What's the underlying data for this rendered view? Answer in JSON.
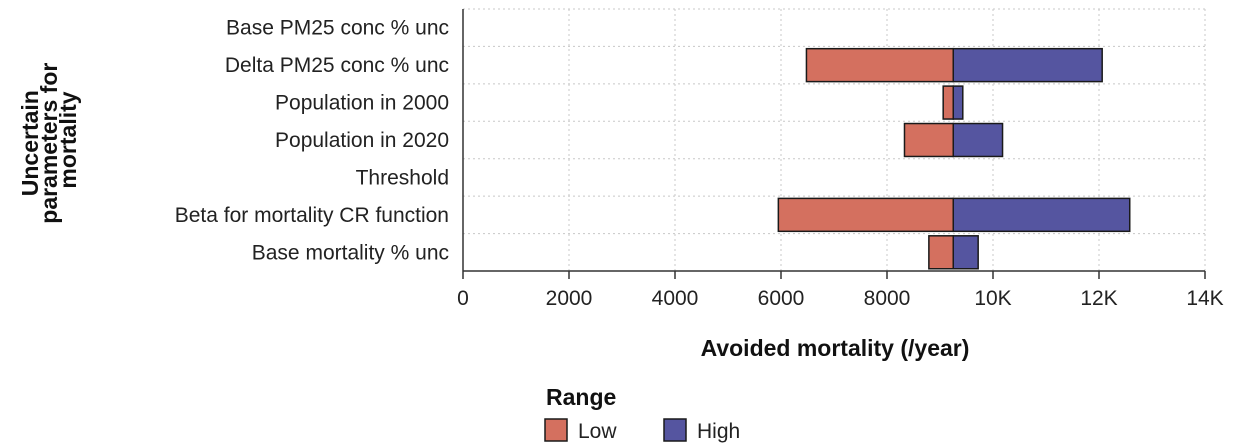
{
  "chart_data": {
    "type": "bar",
    "orientation": "horizontal",
    "style": "tornado",
    "ylabel_lines": [
      "Uncertain",
      "parameters for",
      "mortality"
    ],
    "xlabel": "Avoided mortality (/year)",
    "xlim": [
      0,
      14000
    ],
    "xticks": [
      0,
      2000,
      4000,
      6000,
      8000,
      10000,
      12000,
      14000
    ],
    "xtick_labels": [
      "0",
      "2000",
      "4000",
      "6000",
      "8000",
      "10K",
      "12K",
      "14K"
    ],
    "baseline": 9250,
    "grid": true,
    "legend": {
      "title": "Range",
      "placement": "bottom",
      "entries": [
        {
          "label": "Low",
          "color": "#d4705f"
        },
        {
          "label": "High",
          "color": "#5555a0"
        }
      ]
    },
    "categories": [
      "Base PM25 conc % unc",
      "Delta PM25 conc % unc",
      "Population in 2000",
      "Population in 2020",
      "Threshold",
      "Beta for mortality CR function",
      "Base mortality % unc"
    ],
    "series": [
      {
        "name": "Low",
        "color": "#d4705f",
        "values": [
          9250,
          6480,
          9060,
          8330,
          9250,
          5950,
          8790
        ]
      },
      {
        "name": "High",
        "color": "#5555a0",
        "values": [
          9250,
          12060,
          9430,
          10180,
          9250,
          12580,
          9720
        ]
      }
    ]
  }
}
